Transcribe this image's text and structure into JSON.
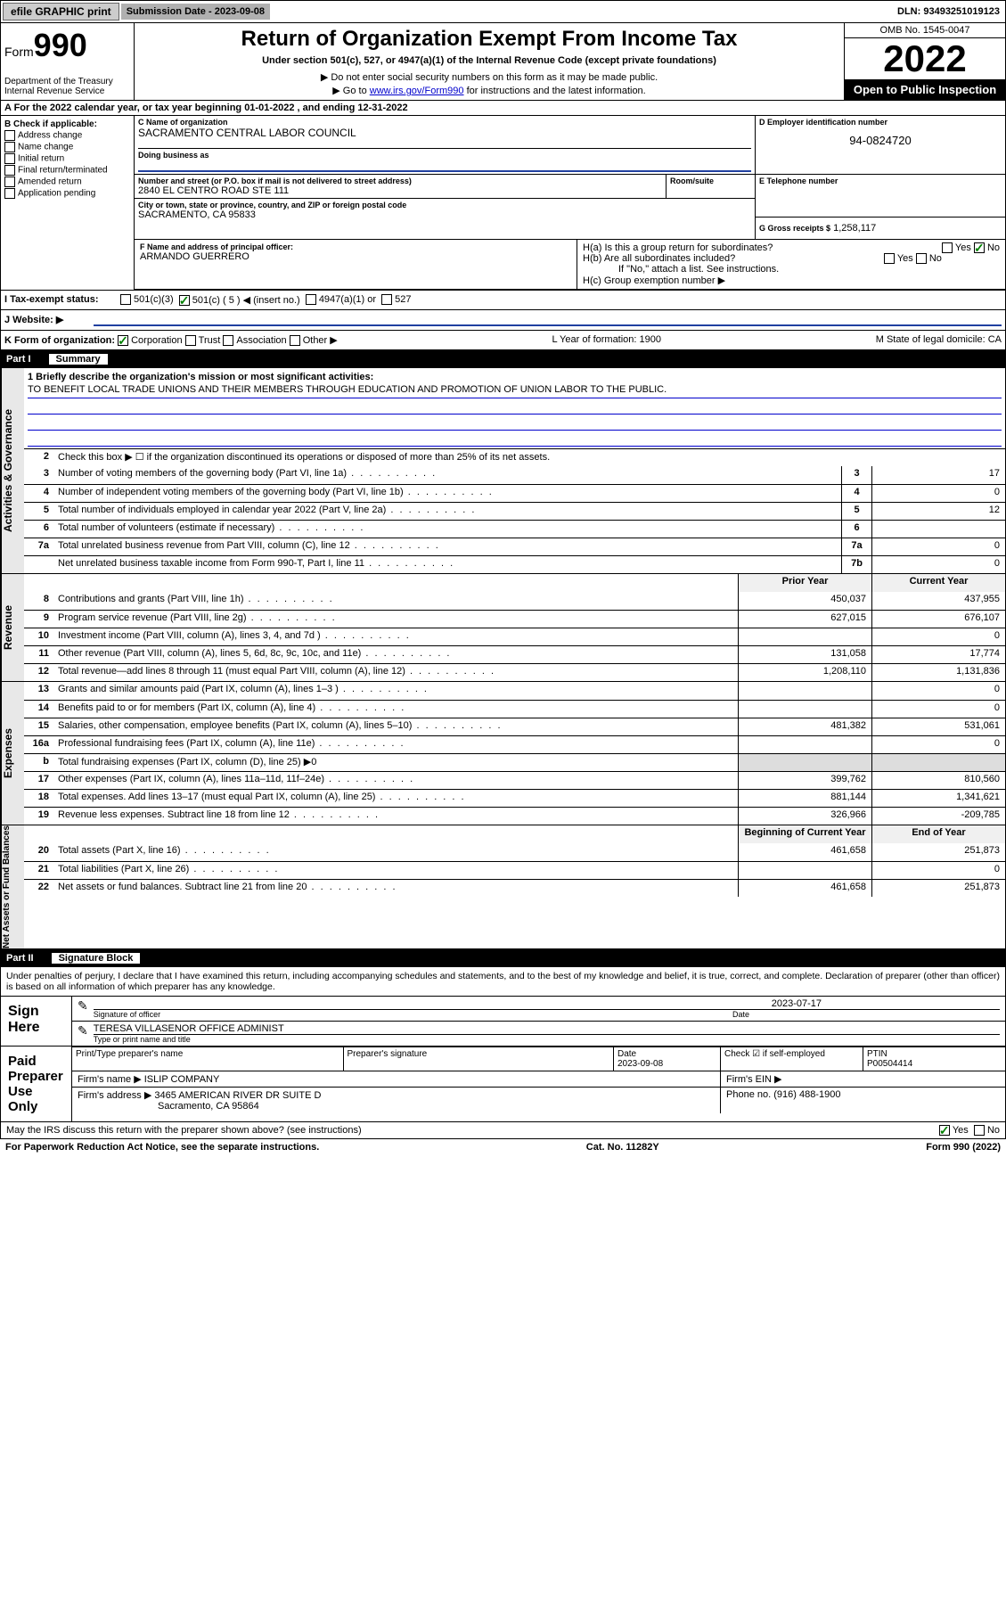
{
  "topbar": {
    "efile": "efile GRAPHIC print",
    "submission_label": "Submission Date - 2023-09-08",
    "dln": "DLN: 93493251019123"
  },
  "header": {
    "form_label": "Form",
    "form_number": "990",
    "department": "Department of the Treasury",
    "irs": "Internal Revenue Service",
    "title": "Return of Organization Exempt From Income Tax",
    "subtitle": "Under section 501(c), 527, or 4947(a)(1) of the Internal Revenue Code (except private foundations)",
    "note1": "▶ Do not enter social security numbers on this form as it may be made public.",
    "note2_pre": "▶ Go to ",
    "note2_link": "www.irs.gov/Form990",
    "note2_post": " for instructions and the latest information.",
    "omb": "OMB No. 1545-0047",
    "year": "2022",
    "open": "Open to Public Inspection"
  },
  "section_a": "A For the 2022 calendar year, or tax year beginning 01-01-2022   , and ending 12-31-2022",
  "check_b": {
    "title": "B Check if applicable:",
    "opts": [
      "Address change",
      "Name change",
      "Initial return",
      "Final return/terminated",
      "Amended return",
      "Application pending"
    ]
  },
  "org": {
    "name_label": "C Name of organization",
    "name": "SACRAMENTO CENTRAL LABOR COUNCIL",
    "dba_label": "Doing business as",
    "dba": "",
    "addr_label": "Number and street (or P.O. box if mail is not delivered to street address)",
    "room_label": "Room/suite",
    "addr": "2840 EL CENTRO ROAD STE 111",
    "city_label": "City or town, state or province, country, and ZIP or foreign postal code",
    "city": "SACRAMENTO, CA  95833",
    "officer_label": "F Name and address of principal officer:",
    "officer": "ARMANDO GUERRERO",
    "ein_label": "D Employer identification number",
    "ein": "94-0824720",
    "phone_label": "E Telephone number",
    "phone": "",
    "gross_label": "G Gross receipts $",
    "gross": "1,258,117"
  },
  "h": {
    "a": "H(a)  Is this a group return for subordinates?",
    "b": "H(b)  Are all subordinates included?",
    "bnote": "If \"No,\" attach a list. See instructions.",
    "c": "H(c)  Group exemption number ▶",
    "yes": "Yes",
    "no": "No"
  },
  "i": {
    "label": "I   Tax-exempt status:",
    "o1": "501(c)(3)",
    "o2": "501(c) ( 5 ) ◀ (insert no.)",
    "o3": "4947(a)(1) or",
    "o4": "527"
  },
  "j": {
    "label": "J   Website: ▶",
    "value": ""
  },
  "k": {
    "label": "K Form of organization:",
    "opts": [
      "Corporation",
      "Trust",
      "Association",
      "Other ▶"
    ],
    "l": "L Year of formation: 1900",
    "m": "M State of legal domicile: CA"
  },
  "part1": {
    "num": "Part I",
    "title": "Summary"
  },
  "mission": {
    "prompt": "1  Briefly describe the organization's mission or most significant activities:",
    "text": "TO BENEFIT LOCAL TRADE UNIONS AND THEIR MEMBERS THROUGH EDUCATION AND PROMOTION OF UNION LABOR TO THE PUBLIC."
  },
  "gov": {
    "l2": "Check this box ▶ ☐  if the organization discontinued its operations or disposed of more than 25% of its net assets.",
    "rows": [
      {
        "n": "3",
        "d": "Number of voting members of the governing body (Part VI, line 1a)",
        "b": "3",
        "v": "17"
      },
      {
        "n": "4",
        "d": "Number of independent voting members of the governing body (Part VI, line 1b)",
        "b": "4",
        "v": "0"
      },
      {
        "n": "5",
        "d": "Total number of individuals employed in calendar year 2022 (Part V, line 2a)",
        "b": "5",
        "v": "12"
      },
      {
        "n": "6",
        "d": "Total number of volunteers (estimate if necessary)",
        "b": "6",
        "v": ""
      },
      {
        "n": "7a",
        "d": "Total unrelated business revenue from Part VIII, column (C), line 12",
        "b": "7a",
        "v": "0"
      },
      {
        "n": "",
        "d": "Net unrelated business taxable income from Form 990-T, Part I, line 11",
        "b": "7b",
        "v": "0"
      }
    ]
  },
  "yearhead": {
    "prior": "Prior Year",
    "current": "Current Year"
  },
  "rev": {
    "label": "Revenue",
    "rows": [
      {
        "n": "8",
        "d": "Contributions and grants (Part VIII, line 1h)",
        "p": "450,037",
        "c": "437,955"
      },
      {
        "n": "9",
        "d": "Program service revenue (Part VIII, line 2g)",
        "p": "627,015",
        "c": "676,107"
      },
      {
        "n": "10",
        "d": "Investment income (Part VIII, column (A), lines 3, 4, and 7d )",
        "p": "",
        "c": "0"
      },
      {
        "n": "11",
        "d": "Other revenue (Part VIII, column (A), lines 5, 6d, 8c, 9c, 10c, and 11e)",
        "p": "131,058",
        "c": "17,774"
      },
      {
        "n": "12",
        "d": "Total revenue—add lines 8 through 11 (must equal Part VIII, column (A), line 12)",
        "p": "1,208,110",
        "c": "1,131,836"
      }
    ]
  },
  "exp": {
    "label": "Expenses",
    "rows": [
      {
        "n": "13",
        "d": "Grants and similar amounts paid (Part IX, column (A), lines 1–3 )",
        "p": "",
        "c": "0"
      },
      {
        "n": "14",
        "d": "Benefits paid to or for members (Part IX, column (A), line 4)",
        "p": "",
        "c": "0"
      },
      {
        "n": "15",
        "d": "Salaries, other compensation, employee benefits (Part IX, column (A), lines 5–10)",
        "p": "481,382",
        "c": "531,061"
      },
      {
        "n": "16a",
        "d": "Professional fundraising fees (Part IX, column (A), line 11e)",
        "p": "",
        "c": "0"
      },
      {
        "n": "b",
        "d": "Total fundraising expenses (Part IX, column (D), line 25) ▶0",
        "p": null,
        "c": null
      },
      {
        "n": "17",
        "d": "Other expenses (Part IX, column (A), lines 11a–11d, 11f–24e)",
        "p": "399,762",
        "c": "810,560"
      },
      {
        "n": "18",
        "d": "Total expenses. Add lines 13–17 (must equal Part IX, column (A), line 25)",
        "p": "881,144",
        "c": "1,341,621"
      },
      {
        "n": "19",
        "d": "Revenue less expenses. Subtract line 18 from line 12",
        "p": "326,966",
        "c": "-209,785"
      }
    ]
  },
  "nethead": {
    "begin": "Beginning of Current Year",
    "end": "End of Year"
  },
  "net": {
    "label": "Net Assets or Fund Balances",
    "rows": [
      {
        "n": "20",
        "d": "Total assets (Part X, line 16)",
        "p": "461,658",
        "c": "251,873"
      },
      {
        "n": "21",
        "d": "Total liabilities (Part X, line 26)",
        "p": "",
        "c": "0"
      },
      {
        "n": "22",
        "d": "Net assets or fund balances. Subtract line 21 from line 20",
        "p": "461,658",
        "c": "251,873"
      }
    ]
  },
  "part2": {
    "num": "Part II",
    "title": "Signature Block"
  },
  "sig": {
    "intro": "Under penalties of perjury, I declare that I have examined this return, including accompanying schedules and statements, and to the best of my knowledge and belief, it is true, correct, and complete. Declaration of preparer (other than officer) is based on all information of which preparer has any knowledge.",
    "sign_here": "Sign Here",
    "sig_officer": "Signature of officer",
    "date": "2023-07-17",
    "date_label": "Date",
    "name": "TERESA VILLASENOR  OFFICE ADMINIST",
    "name_label": "Type or print name and title"
  },
  "paid": {
    "label": "Paid Preparer Use Only",
    "h1": "Print/Type preparer's name",
    "h2": "Preparer's signature",
    "h3": "Date",
    "h4": "Check ☑ if self-employed",
    "h5": "PTIN",
    "date": "2023-09-08",
    "ptin": "P00504414",
    "firm_label": "Firm's name   ▶",
    "firm": "ISLIP COMPANY",
    "ein_label": "Firm's EIN ▶",
    "addr_label": "Firm's address ▶",
    "addr": "3465 AMERICAN RIVER DR SUITE D",
    "addr2": "Sacramento, CA  95864",
    "phone_label": "Phone no.",
    "phone": "(916) 488-1900"
  },
  "footer": {
    "may": "May the IRS discuss this return with the preparer shown above? (see instructions)",
    "yes": "Yes",
    "no": "No",
    "paperwork": "For Paperwork Reduction Act Notice, see the separate instructions.",
    "cat": "Cat. No. 11282Y",
    "formref": "Form 990 (2022)"
  },
  "colors": {
    "link": "#0000cc",
    "check": "#008000",
    "black": "#000000",
    "grey": "#cccccc"
  }
}
